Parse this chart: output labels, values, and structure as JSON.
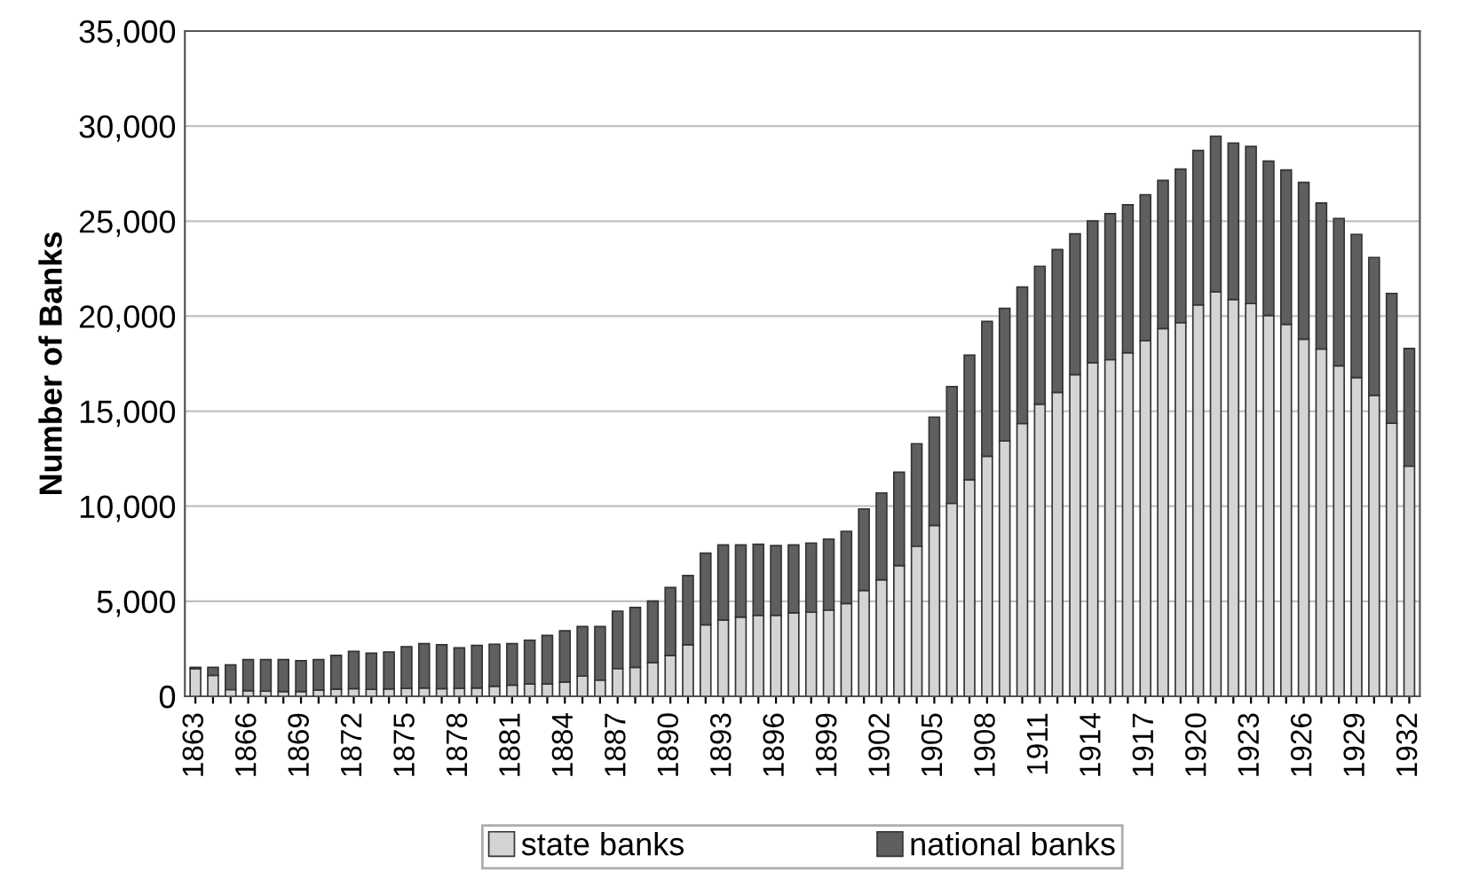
{
  "chart_data": {
    "type": "bar",
    "stacked": true,
    "ylabel": "Number of Banks",
    "categories": [
      "1863",
      null,
      null,
      "1866",
      null,
      null,
      "1869",
      null,
      null,
      "1872",
      null,
      null,
      "1875",
      null,
      null,
      "1878",
      null,
      null,
      "1881",
      null,
      null,
      "1884",
      null,
      null,
      "1887",
      null,
      null,
      "1890",
      null,
      null,
      "1893",
      null,
      null,
      "1896",
      null,
      null,
      "1899",
      null,
      null,
      "1902",
      null,
      null,
      "1905",
      null,
      null,
      "1908",
      null,
      null,
      "1911",
      null,
      null,
      "1914",
      null,
      null,
      "1917",
      null,
      null,
      "1920",
      null,
      null,
      "1923",
      null,
      null,
      "1926",
      null,
      null,
      "1929",
      null,
      null,
      "1932"
    ],
    "series": [
      {
        "name": "state banks",
        "color": "#d4d4d4",
        "values": [
          1450,
          1100,
          350,
          300,
          270,
          250,
          250,
          330,
          380,
          400,
          360,
          390,
          420,
          440,
          400,
          420,
          440,
          530,
          590,
          650,
          650,
          750,
          1060,
          850,
          1460,
          1520,
          1770,
          2150,
          2710,
          3760,
          4010,
          4170,
          4260,
          4260,
          4390,
          4420,
          4540,
          4880,
          5570,
          6130,
          6880,
          7900,
          8990,
          10150,
          11390,
          12630,
          13440,
          14350,
          15370,
          15990,
          16920,
          17550,
          17710,
          18080,
          18700,
          19350,
          19660,
          20600,
          21280,
          20880,
          20660,
          20040,
          19570,
          18790,
          18270,
          17390,
          16770,
          15840,
          14370,
          12110
        ]
      },
      {
        "name": "national banks",
        "color": "#5f5f5f",
        "values": [
          70,
          420,
          1300,
          1630,
          1660,
          1680,
          1620,
          1600,
          1770,
          1960,
          1910,
          1940,
          2190,
          2330,
          2310,
          2130,
          2240,
          2210,
          2180,
          2300,
          2550,
          2700,
          2610,
          2820,
          3020,
          3150,
          3240,
          3570,
          3640,
          3770,
          3950,
          3790,
          3740,
          3670,
          3570,
          3640,
          3730,
          3800,
          4290,
          4570,
          4910,
          5390,
          5700,
          6150,
          6560,
          7090,
          6970,
          7180,
          7250,
          7510,
          7410,
          7460,
          7680,
          7780,
          7690,
          7790,
          8080,
          8120,
          8190,
          8220,
          8270,
          8120,
          8120,
          8250,
          7680,
          7750,
          7530,
          7250,
          6830,
          6190
        ]
      }
    ],
    "ylim": [
      0,
      35000
    ],
    "yticks": [
      0,
      {
        "value": 5000,
        "label": "5,000"
      },
      {
        "value": 10000,
        "label": "10,000"
      },
      {
        "value": 15000,
        "label": "15,000"
      },
      {
        "value": 20000,
        "label": "20,000"
      },
      {
        "value": 25000,
        "label": "25,000"
      },
      {
        "value": 30000,
        "label": "30,000"
      },
      {
        "value": 35000,
        "label": "35,000"
      }
    ],
    "grid": "y",
    "legend": "bottom"
  }
}
